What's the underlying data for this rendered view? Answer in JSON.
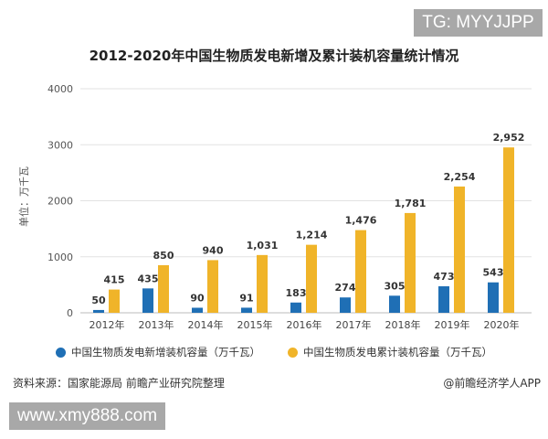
{
  "watermark_top": "TG: MYYJJPP",
  "watermark_bottom": "www.xmy888.com",
  "source": "资料来源：国家能源局 前瞻产业研究院整理",
  "brand": "@前瞻经济学人APP",
  "chart_data": {
    "type": "bar",
    "title": "2012-2020年中国生物质发电新增及累计装机容量统计情况",
    "ylabel": "单位：万千瓦",
    "xlabel": "",
    "ylim": [
      0,
      4000
    ],
    "yticks": [
      "0",
      "1000",
      "2000",
      "3000",
      "4000"
    ],
    "grid": true,
    "legend_position": "bottom",
    "categories": [
      "2012年",
      "2013年",
      "2014年",
      "2015年",
      "2016年",
      "2017年",
      "2018年",
      "2019年",
      "2020年"
    ],
    "series": [
      {
        "name": "中国生物质发电新增装机容量（万千瓦）",
        "color": "#1f6fb5",
        "values": [
          50,
          435,
          90,
          91,
          183,
          274,
          305,
          473,
          543
        ],
        "labels": [
          "50",
          "435",
          "90",
          "91",
          "183",
          "274",
          "305",
          "473",
          "543"
        ]
      },
      {
        "name": "中国生物质发电累计装机容量（万千瓦）",
        "color": "#f0b429",
        "values": [
          415,
          850,
          940,
          1031,
          1214,
          1476,
          1781,
          2254,
          2952
        ],
        "labels": [
          "415",
          "850",
          "940",
          "1,031",
          "1,214",
          "1,476",
          "1,781",
          "2,254",
          "2,952"
        ]
      }
    ]
  }
}
